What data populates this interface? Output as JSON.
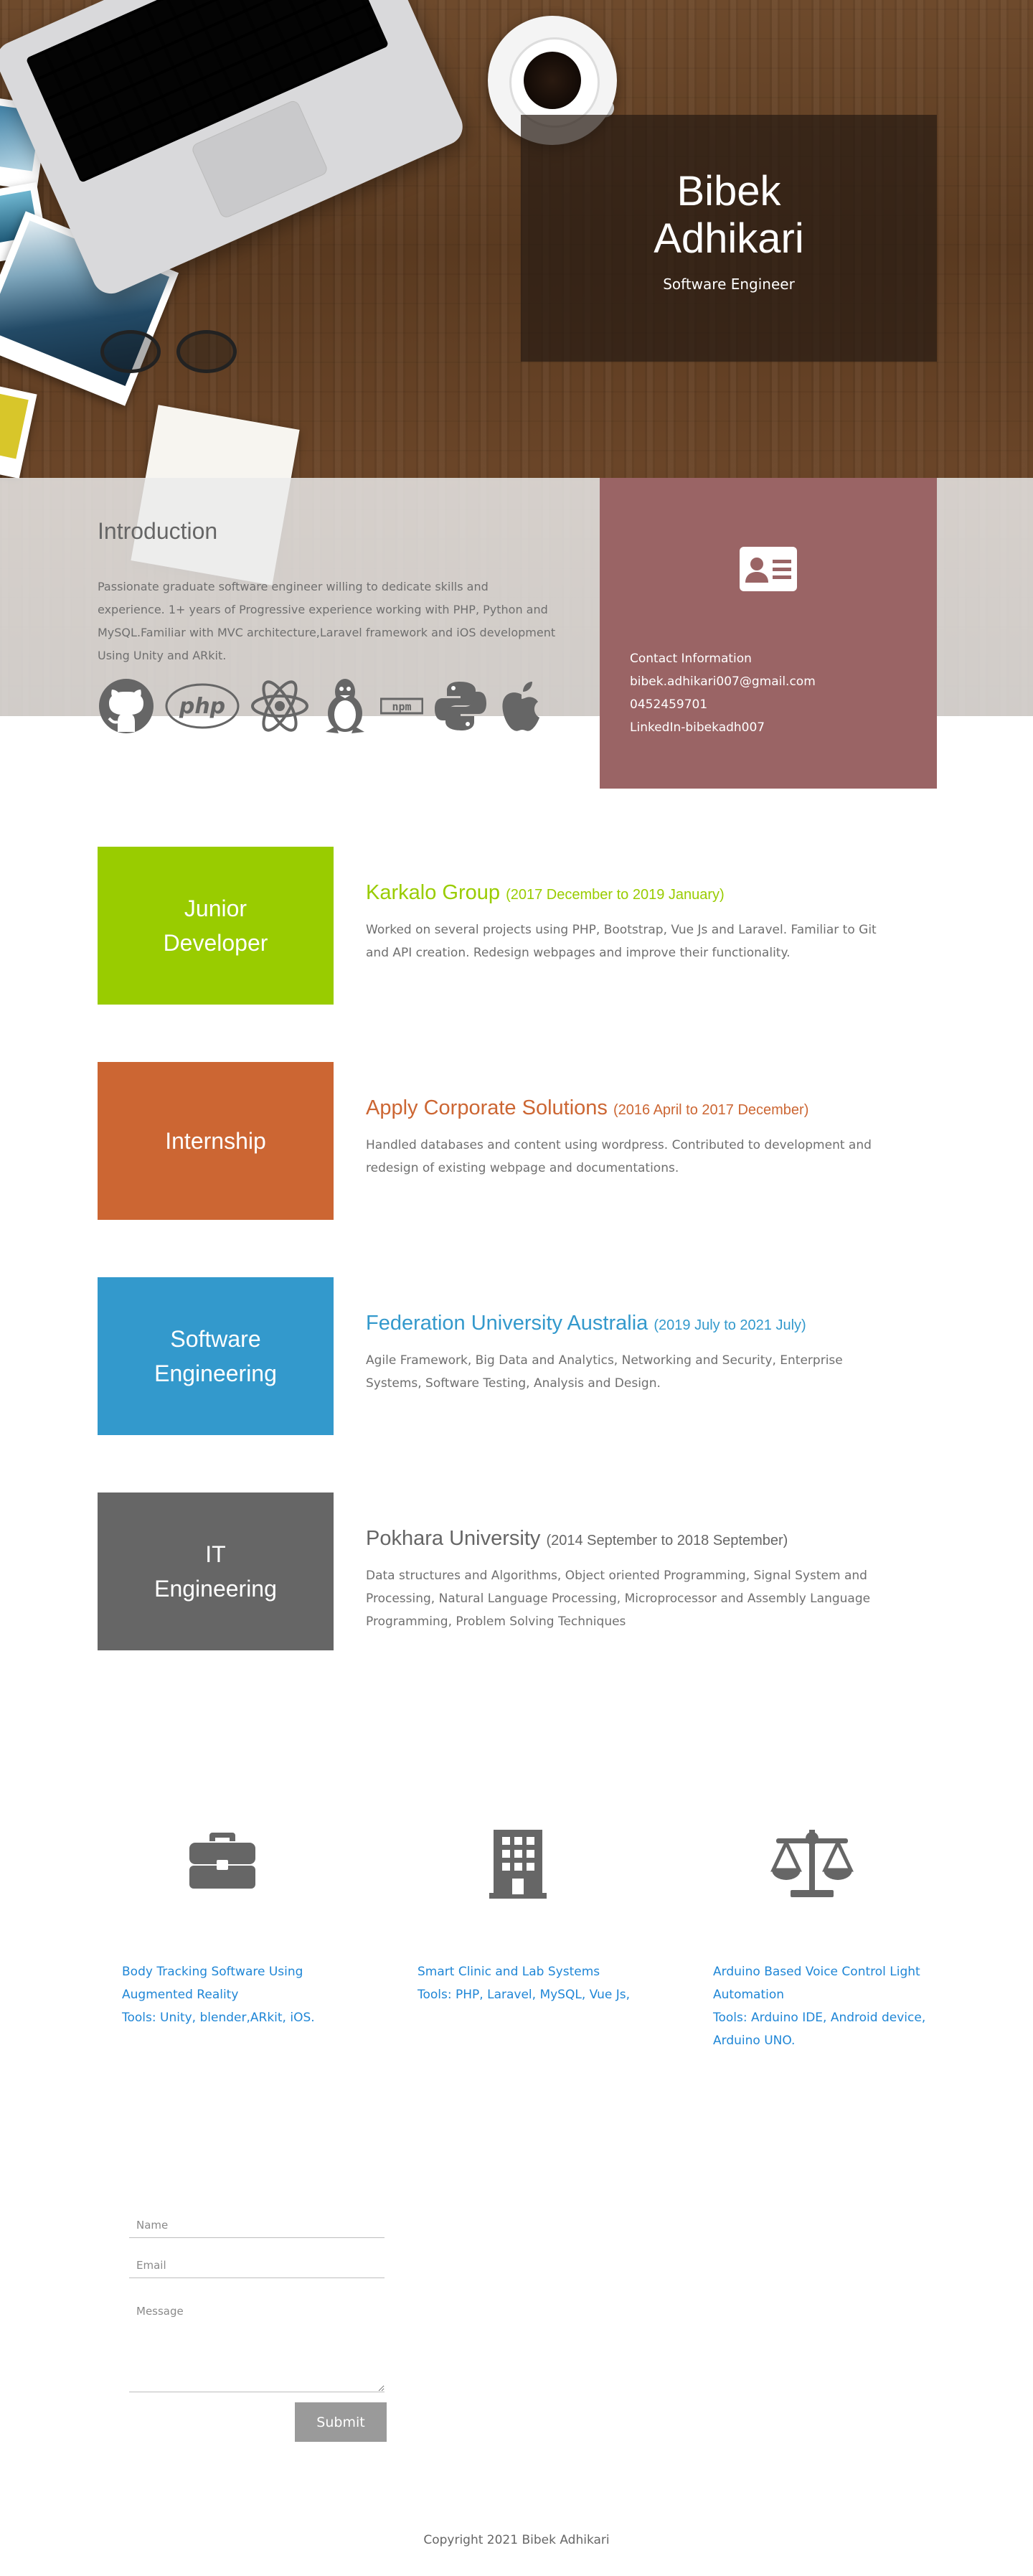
{
  "hero": {
    "name": "Bibek Adhikari",
    "role": "Software Engineer"
  },
  "intro": {
    "title": "Introduction",
    "text": "Passionate graduate software engineer willing to dedicate skills and experience. 1+ years of Progressive experience working with PHP, Python and MySQL.Familiar with MVC architecture,Laravel framework and iOS development Using Unity and ARkit.",
    "tech_icons": [
      "github-icon",
      "php-icon",
      "react-icon",
      "linux-icon",
      "npm-icon",
      "python-icon",
      "apple-icon"
    ]
  },
  "contact": {
    "title": "Contact Information",
    "email": "bibek.adhikari007@gmail.com",
    "phone": "0452459701",
    "linkedin": "LinkedIn-bibekadh007",
    "icon": "contact-card-icon",
    "color": "#9a6465"
  },
  "experience": [
    {
      "tile": "Junior\nDeveloper",
      "company": "Karkalo Group",
      "date": "(2017 December to 2019 January)",
      "description": "Worked on several projects using PHP, Bootstrap, Vue Js and Laravel. Familiar to Git and API creation. Redesign webpages and improve their functionality.",
      "color": "#99cc00"
    },
    {
      "tile": "Internship",
      "company": "Apply Corporate Solutions",
      "date": "(2016 April to 2017 December)",
      "description": "Handled databases and content using wordpress. Contributed to development and redesign of existing webpage and documentations.",
      "color": "#cc6633"
    },
    {
      "tile": "Software\nEngineering",
      "company": "Federation University Australia",
      "date": "(2019 July to 2021 July)",
      "description": "Agile Framework, Big Data and Analytics, Networking and Security, Enterprise Systems, Software Testing, Analysis and Design.",
      "color": "#3399cc"
    },
    {
      "tile": "IT\nEngineering",
      "company": "Pokhara University",
      "date": "(2014 September to 2018 September)",
      "description": "Data structures and Algorithms, Object oriented Programming, Signal System and Processing, Natural Language Processing, Microprocessor and Assembly Language Programming, Problem Solving Techniques",
      "color": "#666666"
    }
  ],
  "projects": [
    {
      "icon": "briefcase-icon",
      "title": "Body Tracking Software Using Augmented Reality",
      "tools": "Tools: Unity, blender,ARkit, iOS."
    },
    {
      "icon": "building-icon",
      "title": "Smart Clinic and Lab Systems",
      "tools": "Tools: PHP, Laravel, MySQL, Vue Js,"
    },
    {
      "icon": "balance-scale-icon",
      "title": "Arduino Based Voice Control Light Automation",
      "tools": "Tools: Arduino IDE, Android device, Arduino UNO."
    }
  ],
  "form": {
    "name_placeholder": "Name",
    "email_placeholder": "Email",
    "message_placeholder": "Message",
    "submit_label": "Submit"
  },
  "footer": {
    "copyright": "Copyright 2021 Bibek Adhikari"
  }
}
